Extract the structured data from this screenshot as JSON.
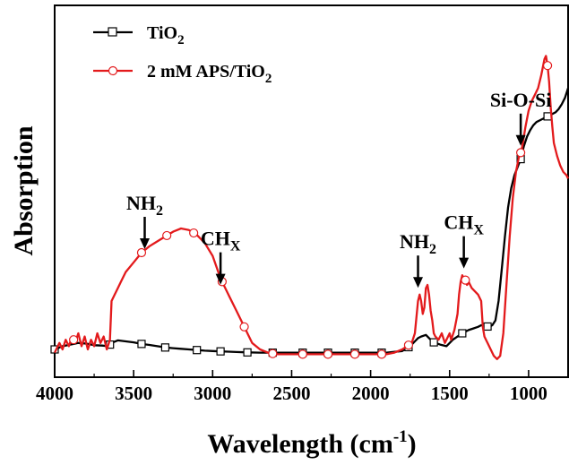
{
  "chart_data": {
    "type": "line",
    "title": "",
    "xlabel": "Wavelength (cm",
    "xlabel_sup": "-1",
    "xlabel_close": ")",
    "ylabel": "Absorption",
    "xlim": [
      4000,
      750
    ],
    "x_reversed": true,
    "ylim": [
      0,
      1
    ],
    "y_ticks_shown": false,
    "grid": false,
    "x_ticks": [
      4000,
      3500,
      3000,
      2500,
      2000,
      1500,
      1000
    ],
    "x_tick_labels": [
      "4000",
      "3500",
      "3000",
      "2500",
      "2000",
      "1500",
      "1000"
    ],
    "legend_position": "top-left",
    "series": [
      {
        "name": "TiO",
        "name_sub": "2",
        "color": "#000000",
        "marker": "square",
        "x": [
          4000,
          3950,
          3900,
          3850,
          3800,
          3750,
          3700,
          3660,
          3640,
          3600,
          3550,
          3500,
          3450,
          3400,
          3350,
          3300,
          3250,
          3200,
          3150,
          3100,
          3050,
          3000,
          2950,
          2900,
          2850,
          2800,
          2700,
          2600,
          2500,
          2400,
          2300,
          2200,
          2100,
          2000,
          1900,
          1800,
          1750,
          1720,
          1700,
          1680,
          1650,
          1620,
          1600,
          1560,
          1520,
          1500,
          1480,
          1450,
          1420,
          1400,
          1380,
          1350,
          1320,
          1300,
          1280,
          1250,
          1230,
          1210,
          1190,
          1170,
          1150,
          1130,
          1110,
          1090,
          1070,
          1050,
          1030,
          1010,
          990,
          970,
          950,
          930,
          910,
          890,
          870,
          850,
          830,
          810,
          790,
          770,
          750
        ],
        "y": [
          0.05,
          0.06,
          0.065,
          0.07,
          0.068,
          0.063,
          0.062,
          0.06,
          0.07,
          0.078,
          0.075,
          0.072,
          0.067,
          0.064,
          0.06,
          0.056,
          0.054,
          0.052,
          0.05,
          0.048,
          0.046,
          0.045,
          0.044,
          0.043,
          0.042,
          0.041,
          0.04,
          0.04,
          0.04,
          0.04,
          0.04,
          0.04,
          0.04,
          0.04,
          0.04,
          0.045,
          0.06,
          0.075,
          0.085,
          0.09,
          0.095,
          0.08,
          0.072,
          0.065,
          0.06,
          0.07,
          0.08,
          0.09,
          0.1,
          0.105,
          0.11,
          0.115,
          0.12,
          0.125,
          0.123,
          0.12,
          0.125,
          0.14,
          0.2,
          0.3,
          0.4,
          0.49,
          0.55,
          0.59,
          0.615,
          0.64,
          0.68,
          0.71,
          0.73,
          0.745,
          0.755,
          0.76,
          0.765,
          0.77,
          0.775,
          0.78,
          0.785,
          0.795,
          0.81,
          0.83,
          0.86
        ],
        "markers_x": [
          4000,
          3650,
          3450,
          3300,
          3100,
          2950,
          2780,
          2620,
          2430,
          2270,
          2100,
          1930,
          1760,
          1600,
          1420,
          1260,
          1050,
          880
        ]
      },
      {
        "name": "2 mM APS/TiO",
        "name_sub": "2",
        "color": "#e31a1c",
        "marker": "circle",
        "x": [
          4000,
          3970,
          3950,
          3930,
          3910,
          3890,
          3870,
          3850,
          3830,
          3810,
          3790,
          3770,
          3750,
          3730,
          3710,
          3690,
          3670,
          3650,
          3640,
          3620,
          3600,
          3580,
          3550,
          3500,
          3450,
          3400,
          3350,
          3300,
          3250,
          3200,
          3150,
          3100,
          3050,
          3000,
          2950,
          2900,
          2850,
          2800,
          2750,
          2700,
          2650,
          2600,
          2500,
          2400,
          2300,
          2200,
          2100,
          2000,
          1900,
          1850,
          1800,
          1770,
          1740,
          1720,
          1700,
          1690,
          1680,
          1670,
          1660,
          1650,
          1640,
          1630,
          1620,
          1610,
          1600,
          1590,
          1570,
          1550,
          1530,
          1510,
          1500,
          1490,
          1470,
          1450,
          1440,
          1430,
          1420,
          1410,
          1400,
          1390,
          1380,
          1360,
          1340,
          1320,
          1300,
          1290,
          1280,
          1260,
          1240,
          1220,
          1200,
          1180,
          1160,
          1140,
          1120,
          1100,
          1080,
          1060,
          1050,
          1040,
          1020,
          1000,
          980,
          960,
          940,
          920,
          900,
          890,
          880,
          870,
          860,
          850,
          840,
          820,
          800,
          780,
          760,
          750
        ],
        "y": [
          0.04,
          0.07,
          0.05,
          0.08,
          0.06,
          0.09,
          0.07,
          0.1,
          0.06,
          0.09,
          0.05,
          0.08,
          0.06,
          0.1,
          0.07,
          0.09,
          0.05,
          0.08,
          0.2,
          0.22,
          0.24,
          0.26,
          0.29,
          0.32,
          0.35,
          0.37,
          0.385,
          0.4,
          0.415,
          0.425,
          0.42,
          0.405,
          0.38,
          0.34,
          0.27,
          0.22,
          0.17,
          0.12,
          0.07,
          0.05,
          0.04,
          0.035,
          0.035,
          0.035,
          0.035,
          0.035,
          0.035,
          0.035,
          0.035,
          0.04,
          0.05,
          0.06,
          0.07,
          0.1,
          0.2,
          0.22,
          0.2,
          0.16,
          0.18,
          0.24,
          0.25,
          0.22,
          0.17,
          0.14,
          0.1,
          0.09,
          0.08,
          0.1,
          0.07,
          0.09,
          0.1,
          0.08,
          0.11,
          0.16,
          0.22,
          0.26,
          0.28,
          0.27,
          0.265,
          0.25,
          0.26,
          0.24,
          0.23,
          0.22,
          0.2,
          0.12,
          0.09,
          0.07,
          0.05,
          0.03,
          0.02,
          0.03,
          0.1,
          0.25,
          0.4,
          0.52,
          0.6,
          0.65,
          0.66,
          0.68,
          0.74,
          0.79,
          0.82,
          0.84,
          0.86,
          0.9,
          0.95,
          0.96,
          0.93,
          0.88,
          0.8,
          0.74,
          0.69,
          0.65,
          0.62,
          0.6,
          0.59,
          0.58
        ],
        "markers_x": [
          3880,
          3450,
          3290,
          3120,
          2940,
          2800,
          2620,
          2430,
          2270,
          2100,
          1930,
          1760,
          1400,
          1050,
          880
        ]
      }
    ],
    "annotations": [
      {
        "text": "NH",
        "sub": "2",
        "arrow_x": 3430,
        "arrow_y": 0.35
      },
      {
        "text": "CH",
        "sub": "X",
        "arrow_x": 2950,
        "arrow_y": 0.24
      },
      {
        "text": "NH",
        "sub": "2",
        "arrow_x": 1700,
        "arrow_y": 0.23
      },
      {
        "text": "CH",
        "sub": "X",
        "arrow_x": 1410,
        "arrow_y": 0.29
      },
      {
        "text": "Si-O-Si",
        "sub": "",
        "arrow_x": 1050,
        "arrow_y": 0.67
      }
    ]
  }
}
